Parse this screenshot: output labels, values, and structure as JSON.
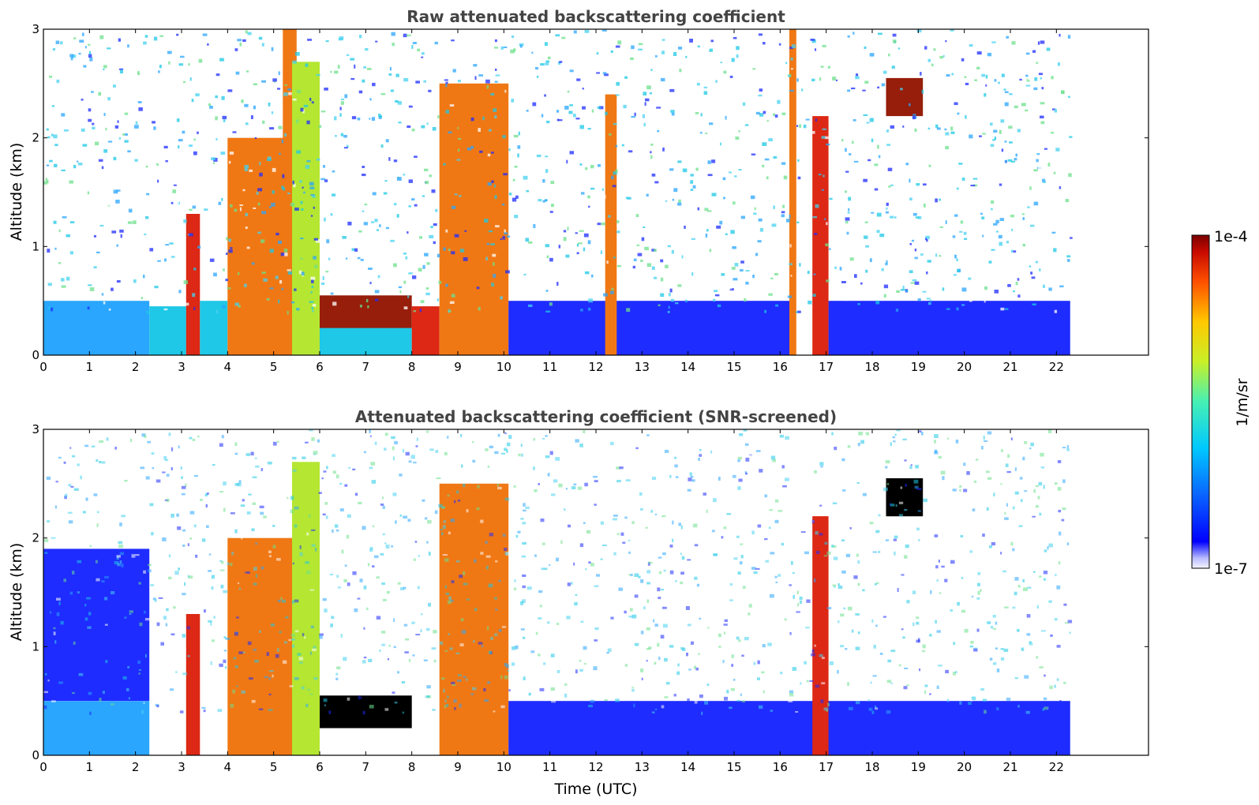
{
  "chart_data": [
    {
      "type": "heatmap",
      "title": "Raw attenuated backscattering coefficient",
      "xlabel": "",
      "ylabel": "Altitude (km)",
      "xlim": [
        0,
        24
      ],
      "ylim": [
        0,
        3
      ],
      "x_ticks": [
        "0",
        "1",
        "2",
        "3",
        "4",
        "5",
        "6",
        "7",
        "8",
        "9",
        "10",
        "11",
        "12",
        "13",
        "14",
        "15",
        "16",
        "17",
        "18",
        "19",
        "20",
        "21",
        "22"
      ],
      "y_ticks": [
        "0",
        "1",
        "2",
        "3"
      ],
      "data_end_time": 22.3,
      "cells": [
        {
          "t0": 0,
          "t1": 2.3,
          "z0": 0,
          "z1": 0.5,
          "level": "light-blue"
        },
        {
          "t0": 2.3,
          "t1": 3.1,
          "z0": 0,
          "z1": 0.45,
          "level": "cyan"
        },
        {
          "t0": 3.1,
          "t1": 3.4,
          "z0": 0,
          "z1": 1.3,
          "level": "red"
        },
        {
          "t0": 3.4,
          "t1": 4.0,
          "z0": 0,
          "z1": 0.5,
          "level": "cyan"
        },
        {
          "t0": 4.0,
          "t1": 5.4,
          "z0": 0,
          "z1": 2.0,
          "level": "orange"
        },
        {
          "t0": 5.2,
          "t1": 5.5,
          "z0": 0.3,
          "z1": 3.0,
          "level": "orange"
        },
        {
          "t0": 5.4,
          "t1": 6.0,
          "z0": 0,
          "z1": 2.7,
          "level": "yellow-green"
        },
        {
          "t0": 6.0,
          "t1": 8.0,
          "z0": 0,
          "z1": 0.3,
          "level": "cyan"
        },
        {
          "t0": 6.0,
          "t1": 8.0,
          "z0": 0.25,
          "z1": 0.55,
          "level": "dark-red"
        },
        {
          "t0": 8.0,
          "t1": 8.6,
          "z0": 0,
          "z1": 0.45,
          "level": "red"
        },
        {
          "t0": 8.6,
          "t1": 10.1,
          "z0": 0,
          "z1": 2.5,
          "level": "orange"
        },
        {
          "t0": 10.1,
          "t1": 16.2,
          "z0": 0,
          "z1": 0.5,
          "level": "blue"
        },
        {
          "t0": 12.2,
          "t1": 12.45,
          "z0": 0,
          "z1": 2.4,
          "level": "orange"
        },
        {
          "t0": 16.2,
          "t1": 16.35,
          "z0": 0,
          "z1": 3.0,
          "level": "orange"
        },
        {
          "t0": 16.7,
          "t1": 17.05,
          "z0": 0,
          "z1": 2.2,
          "level": "red"
        },
        {
          "t0": 17.05,
          "t1": 22.3,
          "z0": 0,
          "z1": 0.5,
          "level": "blue"
        },
        {
          "t0": 18.3,
          "t1": 19.1,
          "z0": 2.2,
          "z1": 2.55,
          "level": "dark-red"
        }
      ]
    },
    {
      "type": "heatmap",
      "title": "Attenuated backscattering coefficient (SNR-screened)",
      "xlabel": "Time (UTC)",
      "ylabel": "Altitude (km)",
      "xlim": [
        0,
        24
      ],
      "ylim": [
        0,
        3
      ],
      "x_ticks": [
        "0",
        "1",
        "2",
        "3",
        "4",
        "5",
        "6",
        "7",
        "8",
        "9",
        "10",
        "11",
        "12",
        "13",
        "14",
        "15",
        "16",
        "17",
        "18",
        "19",
        "20",
        "21",
        "22"
      ],
      "y_ticks": [
        "0",
        "1",
        "2",
        "3"
      ],
      "data_end_time": 22.3,
      "cells": [
        {
          "t0": 0,
          "t1": 2.3,
          "z0": 0,
          "z1": 0.5,
          "level": "light-blue"
        },
        {
          "t0": 0,
          "t1": 2.3,
          "z0": 0.5,
          "z1": 1.9,
          "level": "blue"
        },
        {
          "t0": 3.1,
          "t1": 3.4,
          "z0": 0,
          "z1": 1.3,
          "level": "red"
        },
        {
          "t0": 4.0,
          "t1": 5.4,
          "z0": 0,
          "z1": 2.0,
          "level": "orange"
        },
        {
          "t0": 5.4,
          "t1": 6.0,
          "z0": 0,
          "z1": 2.7,
          "level": "yellow-green"
        },
        {
          "t0": 6.0,
          "t1": 8.0,
          "z0": 0.25,
          "z1": 0.55,
          "level": "black"
        },
        {
          "t0": 8.6,
          "t1": 10.1,
          "z0": 0,
          "z1": 2.5,
          "level": "orange"
        },
        {
          "t0": 10.1,
          "t1": 22.3,
          "z0": 0,
          "z1": 0.5,
          "level": "blue"
        },
        {
          "t0": 16.7,
          "t1": 17.05,
          "z0": 0,
          "z1": 2.2,
          "level": "red"
        },
        {
          "t0": 18.3,
          "t1": 19.1,
          "z0": 2.2,
          "z1": 2.55,
          "level": "black"
        }
      ]
    }
  ],
  "colorbar": {
    "label": "1/m/sr",
    "max_label": "1e-4",
    "min_label": "1e-7",
    "scale": "log",
    "colormap": "jet"
  },
  "colors": {
    "white": "#ffffff",
    "pale-blue": "#d8dcff",
    "blue": "#1e2cff",
    "light-blue": "#2aa6ff",
    "cyan": "#1ec8e6",
    "green": "#6ee08c",
    "yellow-green": "#b4e632",
    "yellow": "#f0e614",
    "orange": "#f07814",
    "red": "#dc2814",
    "dark-red": "#961e0a",
    "black": "#000000",
    "title_gray": "#444444"
  }
}
